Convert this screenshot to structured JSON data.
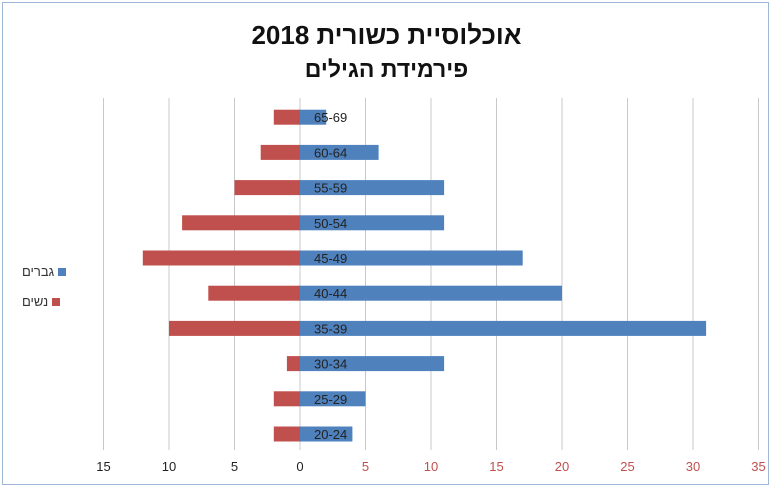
{
  "chart_data": {
    "type": "bar",
    "orientation": "horizontal-diverging",
    "title": "אוכלוסיית כשורית 2018",
    "subtitle": "פירמידת הגילים",
    "categories": [
      "20-24",
      "25-29",
      "30-34",
      "35-39",
      "40-44",
      "45-49",
      "50-54",
      "55-59",
      "60-64",
      "65-69"
    ],
    "series": [
      {
        "name": "גברים",
        "color": "#4f81bd",
        "values": [
          4,
          5,
          11,
          31,
          20,
          17,
          11,
          11,
          6,
          2
        ]
      },
      {
        "name": "נשים",
        "color": "#c0504d",
        "values": [
          2,
          2,
          1,
          10,
          7,
          12,
          9,
          5,
          3,
          2
        ]
      }
    ],
    "x_ticks_left": [
      "15",
      "10",
      "5",
      "0"
    ],
    "x_ticks_right": [
      "5",
      "10",
      "15",
      "20",
      "25",
      "30",
      "35"
    ],
    "xlim": [
      -15,
      35
    ],
    "grid": true,
    "legend_position": "left"
  }
}
